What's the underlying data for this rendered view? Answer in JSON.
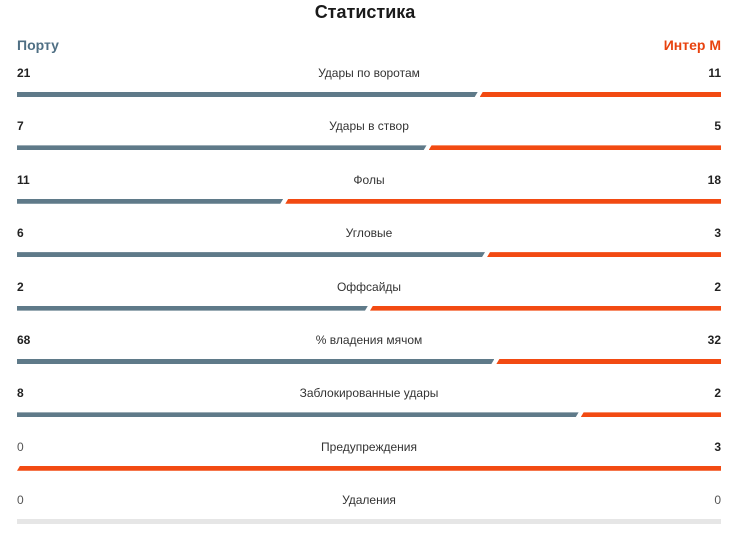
{
  "title": "Статистика",
  "teams": {
    "home": {
      "name": "Порту",
      "color": "#4f6f84"
    },
    "away": {
      "name": "Интер М",
      "color": "#e8420e"
    }
  },
  "bar_colors": {
    "home": "#5f7a89",
    "away": "#f24a12",
    "empty": "#e6e6e6"
  },
  "stats": [
    {
      "label": "Удары по воротам",
      "home": "21",
      "away": "11"
    },
    {
      "label": "Удары в створ",
      "home": "7",
      "away": "5"
    },
    {
      "label": "Фолы",
      "home": "11",
      "away": "18"
    },
    {
      "label": "Угловые",
      "home": "6",
      "away": "3"
    },
    {
      "label": "Оффсайды",
      "home": "2",
      "away": "2"
    },
    {
      "label": "% владения мячом",
      "home": "68",
      "away": "32"
    },
    {
      "label": "Заблокированные удары",
      "home": "8",
      "away": "2"
    },
    {
      "label": "Предупреждения",
      "home": "0",
      "away": "3"
    },
    {
      "label": "Удаления",
      "home": "0",
      "away": "0"
    }
  ]
}
